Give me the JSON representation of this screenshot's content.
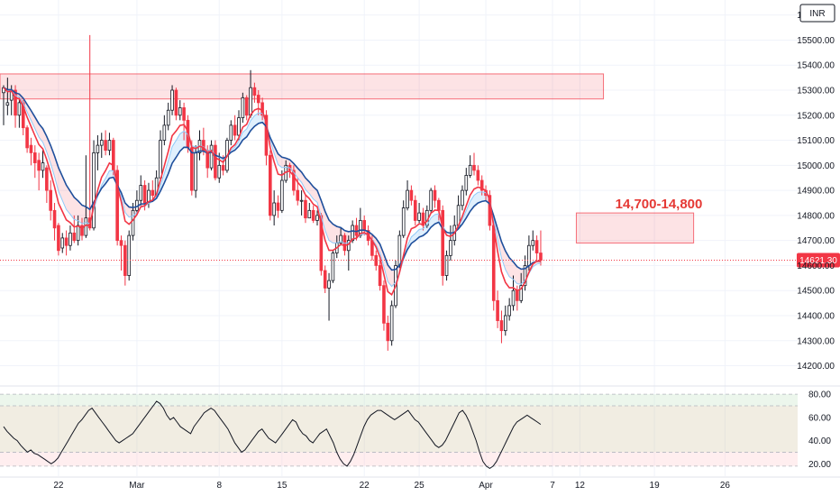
{
  "chart_data": [
    {
      "type": "candlestick",
      "currency": "INR",
      "last_price_label": "14621.30",
      "last_price": 14621.3,
      "annotation": "14,700-14,800",
      "ylim": [
        14130,
        15660
      ],
      "y_ticks": [
        14200,
        14300,
        14400,
        14500,
        14600,
        14700,
        14800,
        14900,
        15000,
        15100,
        15200,
        15300,
        15400,
        15500,
        15600
      ],
      "y_tick_labels": [
        "14200.00",
        "14300.00",
        "14400.00",
        "14500.00",
        "14600.00",
        "14700.00",
        "14800.00",
        "14900.00",
        "15000.00",
        "15100.00",
        "15200.00",
        "15300.00",
        "15400.00",
        "15500.00",
        "15600.00"
      ],
      "x_ticks": [
        {
          "label": "22",
          "index": 14
        },
        {
          "label": "Mar",
          "index": 34
        },
        {
          "label": "8",
          "index": 55
        },
        {
          "label": "15",
          "index": 71
        },
        {
          "label": "22",
          "index": 92
        },
        {
          "label": "25",
          "index": 106
        },
        {
          "label": "Apr",
          "index": 123
        },
        {
          "label": "7",
          "index": 140
        },
        {
          "label": "12",
          "index": 147
        },
        {
          "label": "19",
          "index": 166
        },
        {
          "label": "26",
          "index": 184
        }
      ],
      "zones": [
        {
          "from_index": 0,
          "to_index": 153,
          "low": 15265,
          "high": 15365,
          "color": "#f23645"
        },
        {
          "from_index": 147,
          "to_index": 176,
          "low": 14690,
          "high": 14810,
          "color": "#f23645"
        }
      ],
      "ema_fast_color": "#f23645",
      "ema_slow_color": "#1e4f9c",
      "candles": [
        [
          15290,
          15310,
          15320,
          15160
        ],
        [
          15240,
          15250,
          15350,
          15200
        ],
        [
          15260,
          15300,
          15320,
          15200
        ],
        [
          15300,
          15200,
          15320,
          15150
        ],
        [
          15200,
          15250,
          15270,
          15150
        ],
        [
          15250,
          15150,
          15260,
          15120
        ],
        [
          15150,
          15070,
          15160,
          15050
        ],
        [
          15080,
          15050,
          15110,
          15000
        ],
        [
          15050,
          15010,
          15080,
          14950
        ],
        [
          15020,
          14980,
          15050,
          14900
        ],
        [
          14980,
          15010,
          15060,
          14950
        ],
        [
          14990,
          14900,
          15000,
          14850
        ],
        [
          14900,
          14820,
          14940,
          14780
        ],
        [
          14820,
          14750,
          14850,
          14700
        ],
        [
          14760,
          14660,
          14770,
          14640
        ],
        [
          14670,
          14710,
          14730,
          14650
        ],
        [
          14710,
          14680,
          14740,
          14640
        ],
        [
          14680,
          14730,
          14760,
          14660
        ],
        [
          14730,
          14700,
          14800,
          14690
        ],
        [
          14700,
          14760,
          14800,
          14680
        ],
        [
          14760,
          14720,
          14790,
          14700
        ],
        [
          14720,
          14790,
          15040,
          14710
        ],
        [
          14790,
          14750,
          15520,
          14740
        ],
        [
          14750,
          15050,
          15100,
          14740
        ],
        [
          15050,
          15080,
          15120,
          14980
        ],
        [
          15080,
          15100,
          15130,
          15030
        ],
        [
          15100,
          15060,
          15140,
          15040
        ],
        [
          15060,
          15100,
          15130,
          15040
        ],
        [
          15100,
          14980,
          15110,
          14960
        ],
        [
          14980,
          14700,
          15000,
          14680
        ],
        [
          14700,
          14680,
          14720,
          14580
        ],
        [
          14680,
          14560,
          14700,
          14520
        ],
        [
          14560,
          14720,
          14740,
          14540
        ],
        [
          14720,
          14820,
          14850,
          14700
        ],
        [
          14820,
          14860,
          14900,
          14800
        ],
        [
          14860,
          14920,
          14960,
          14840
        ],
        [
          14920,
          14850,
          14940,
          14820
        ],
        [
          14850,
          14900,
          14930,
          14830
        ],
        [
          14900,
          14880,
          14940,
          14860
        ],
        [
          14880,
          14950,
          14980,
          14870
        ],
        [
          14950,
          15100,
          15140,
          14940
        ],
        [
          15100,
          15160,
          15200,
          15080
        ],
        [
          15160,
          15220,
          15250,
          15140
        ],
        [
          15220,
          15300,
          15320,
          15200
        ],
        [
          15300,
          15200,
          15310,
          15180
        ],
        [
          15200,
          15230,
          15260,
          15180
        ],
        [
          15230,
          15180,
          15250,
          15100
        ],
        [
          15180,
          15070,
          15200,
          15050
        ],
        [
          15070,
          14900,
          15100,
          14880
        ],
        [
          14900,
          15050,
          15080,
          14870
        ],
        [
          15050,
          15100,
          15140,
          15020
        ],
        [
          15100,
          15060,
          15150,
          15040
        ],
        [
          15060,
          14990,
          15080,
          14950
        ],
        [
          14990,
          15080,
          15100,
          14980
        ],
        [
          15080,
          14950,
          15100,
          14940
        ],
        [
          14950,
          15000,
          15050,
          14930
        ],
        [
          15000,
          14980,
          15040,
          14960
        ],
        [
          14980,
          15100,
          15110,
          14970
        ],
        [
          15100,
          15160,
          15180,
          15080
        ],
        [
          15160,
          15120,
          15200,
          15100
        ],
        [
          15120,
          15190,
          15220,
          15100
        ],
        [
          15190,
          15270,
          15290,
          15170
        ],
        [
          15270,
          15200,
          15280,
          15180
        ],
        [
          15200,
          15310,
          15380,
          15190
        ],
        [
          15310,
          15280,
          15330,
          15250
        ],
        [
          15280,
          15250,
          15300,
          15200
        ],
        [
          15250,
          15200,
          15270,
          15180
        ],
        [
          15200,
          15040,
          15220,
          15000
        ],
        [
          15040,
          14800,
          15060,
          14780
        ],
        [
          14800,
          14850,
          14900,
          14760
        ],
        [
          14850,
          14820,
          14880,
          14790
        ],
        [
          14820,
          14940,
          14980,
          14810
        ],
        [
          14940,
          15000,
          15020,
          14930
        ],
        [
          15000,
          14980,
          15010,
          14950
        ],
        [
          14980,
          14900,
          15000,
          14880
        ],
        [
          14900,
          14860,
          14950,
          14840
        ],
        [
          14860,
          14860,
          14900,
          14800
        ],
        [
          14860,
          14790,
          14880,
          14770
        ],
        [
          14790,
          14820,
          14850,
          14790
        ],
        [
          14820,
          14780,
          14840,
          14770
        ],
        [
          14780,
          14800,
          14820,
          14760
        ],
        [
          14800,
          14580,
          14810,
          14560
        ],
        [
          14580,
          14510,
          14600,
          14490
        ],
        [
          14510,
          14540,
          14570,
          14380
        ],
        [
          14540,
          14650,
          14660,
          14530
        ],
        [
          14650,
          14690,
          14720,
          14630
        ],
        [
          14690,
          14720,
          14750,
          14680
        ],
        [
          14720,
          14660,
          14730,
          14640
        ],
        [
          14660,
          14700,
          14720,
          14580
        ],
        [
          14700,
          14760,
          14780,
          14690
        ],
        [
          14760,
          14720,
          14790,
          14700
        ],
        [
          14720,
          14780,
          14830,
          14710
        ],
        [
          14780,
          14740,
          14800,
          14720
        ],
        [
          14740,
          14700,
          14760,
          14680
        ],
        [
          14700,
          14640,
          14720,
          14620
        ],
        [
          14640,
          14600,
          14660,
          14580
        ],
        [
          14600,
          14520,
          14620,
          14500
        ],
        [
          14520,
          14370,
          14540,
          14340
        ],
        [
          14370,
          14300,
          14400,
          14260
        ],
        [
          14300,
          14440,
          14460,
          14280
        ],
        [
          14440,
          14600,
          14620,
          14430
        ],
        [
          14600,
          14720,
          14740,
          14590
        ],
        [
          14720,
          14830,
          14860,
          14710
        ],
        [
          14830,
          14900,
          14940,
          14820
        ],
        [
          14900,
          14860,
          14920,
          14840
        ],
        [
          14860,
          14780,
          14880,
          14760
        ],
        [
          14780,
          14810,
          14850,
          14770
        ],
        [
          14810,
          14760,
          14830,
          14740
        ],
        [
          14760,
          14820,
          14840,
          14750
        ],
        [
          14820,
          14900,
          14910,
          14810
        ],
        [
          14900,
          14860,
          14920,
          14830
        ],
        [
          14860,
          14820,
          14870,
          14780
        ],
        [
          14820,
          14560,
          14840,
          14520
        ],
        [
          14560,
          14640,
          14660,
          14540
        ],
        [
          14640,
          14700,
          14760,
          14620
        ],
        [
          14700,
          14760,
          14800,
          14680
        ],
        [
          14760,
          14840,
          14880,
          14750
        ],
        [
          14840,
          14900,
          14920,
          14820
        ],
        [
          14900,
          14960,
          14990,
          14880
        ],
        [
          14960,
          15000,
          15040,
          14950
        ],
        [
          15000,
          14980,
          15050,
          14960
        ],
        [
          14980,
          14940,
          15000,
          14920
        ],
        [
          14940,
          14900,
          14960,
          14880
        ],
        [
          14900,
          14880,
          14920,
          14860
        ],
        [
          14880,
          14760,
          14900,
          14740
        ],
        [
          14760,
          14460,
          14780,
          14420
        ],
        [
          14460,
          14380,
          14500,
          14350
        ],
        [
          14380,
          14340,
          14420,
          14290
        ],
        [
          14340,
          14400,
          14440,
          14320
        ],
        [
          14400,
          14440,
          14470,
          14380
        ],
        [
          14440,
          14500,
          14560,
          14420
        ],
        [
          14500,
          14460,
          14520,
          14420
        ],
        [
          14460,
          14520,
          14570,
          14450
        ],
        [
          14520,
          14600,
          14640,
          14500
        ],
        [
          14600,
          14680,
          14720,
          14580
        ],
        [
          14680,
          14700,
          14740,
          14660
        ],
        [
          14700,
          14650,
          14720,
          14620
        ],
        [
          14650,
          14621,
          14740,
          14600
        ]
      ],
      "rsi": {
        "ylim": [
          14,
          84
        ],
        "y_ticks": [
          20,
          40,
          60,
          80
        ],
        "y_tick_labels": [
          "20.00",
          "40.00",
          "60.00",
          "80.00"
        ],
        "band_upper": 70,
        "band_lower": 30,
        "values": [
          52,
          48,
          45,
          42,
          40,
          36,
          33,
          30,
          32,
          29,
          28,
          26,
          24,
          22,
          20,
          22,
          25,
          30,
          35,
          40,
          45,
          50,
          55,
          58,
          62,
          66,
          68,
          64,
          60,
          56,
          52,
          48,
          44,
          40,
          38,
          40,
          42,
          44,
          46,
          50,
          54,
          58,
          62,
          66,
          70,
          74,
          72,
          68,
          62,
          58,
          60,
          56,
          52,
          50,
          48,
          46,
          52,
          56,
          60,
          64,
          66,
          68,
          66,
          62,
          58,
          54,
          50,
          44,
          38,
          34,
          30,
          32,
          36,
          40,
          44,
          48,
          50,
          46,
          42,
          40,
          38,
          42,
          46,
          50,
          54,
          58,
          56,
          50,
          46,
          44,
          40,
          38,
          42,
          46,
          48,
          50,
          44,
          38,
          30,
          24,
          20,
          18,
          22,
          28,
          36,
          44,
          52,
          58,
          62,
          64,
          66,
          66,
          64,
          62,
          60,
          58,
          60,
          62,
          64,
          66,
          62,
          58,
          56,
          52,
          48,
          44,
          40,
          36,
          34,
          36,
          40,
          46,
          52,
          58,
          64,
          66,
          62,
          56,
          48,
          40,
          30,
          22,
          18,
          16,
          18,
          22,
          28,
          34,
          40,
          46,
          52,
          56,
          58,
          60,
          62,
          60,
          58,
          56,
          54
        ]
      }
    }
  ]
}
